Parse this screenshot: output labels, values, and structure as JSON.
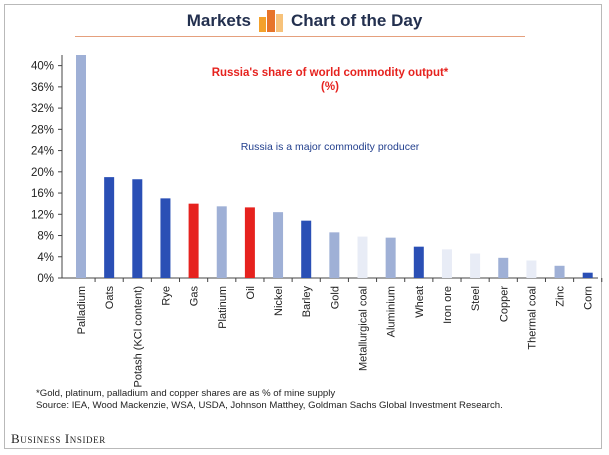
{
  "header": {
    "left_text": "Markets",
    "right_text": "Chart of the Day",
    "icon": "chart-of-the-day-icon"
  },
  "chart_data": {
    "type": "bar",
    "title": "Russia's share of world commodity output*",
    "subtitle": "(%)",
    "annotation": "Russia is a major commodity producer",
    "xlabel": "",
    "ylabel": "",
    "ylim": [
      0,
      42
    ],
    "yticks": [
      "0%",
      "4%",
      "8%",
      "12%",
      "16%",
      "20%",
      "24%",
      "28%",
      "32%",
      "36%",
      "40%"
    ],
    "grid": false,
    "categories": [
      "Palladium",
      "Oats",
      "Potash (KCl content)",
      "Rye",
      "Gas",
      "Platinum",
      "Oil",
      "Nickel",
      "Barley",
      "Gold",
      "Metallurgical coal",
      "Aluminium",
      "Wheat",
      "Iron ore",
      "Steel",
      "Copper",
      "Thermal coal",
      "Zinc",
      "Corn"
    ],
    "values": [
      42,
      19,
      18.6,
      15,
      14,
      13.5,
      13.3,
      12.4,
      10.8,
      8.6,
      7.8,
      7.6,
      5.9,
      5.4,
      4.6,
      3.8,
      3.3,
      2.3,
      1.0
    ],
    "bar_colors": [
      "#9fb0d6",
      "#2a4fb5",
      "#2a4fb5",
      "#2a4fb5",
      "#e6221e",
      "#9fb0d6",
      "#e6221e",
      "#9fb0d6",
      "#2a4fb5",
      "#9fb0d6",
      "#e8ecf6",
      "#9fb0d6",
      "#2a4fb5",
      "#e8ecf6",
      "#e8ecf6",
      "#9fb0d6",
      "#e8ecf6",
      "#9fb0d6",
      "#2a4fb5"
    ]
  },
  "footnote": {
    "line1": "*Gold, platinum, palladium and copper shares are as % of mine supply",
    "line2": "Source: IEA, Wood Mackenzie, WSA, USDA, Johnson Matthey, Goldman Sachs Global Investment Research."
  },
  "brand": "Business Insider"
}
